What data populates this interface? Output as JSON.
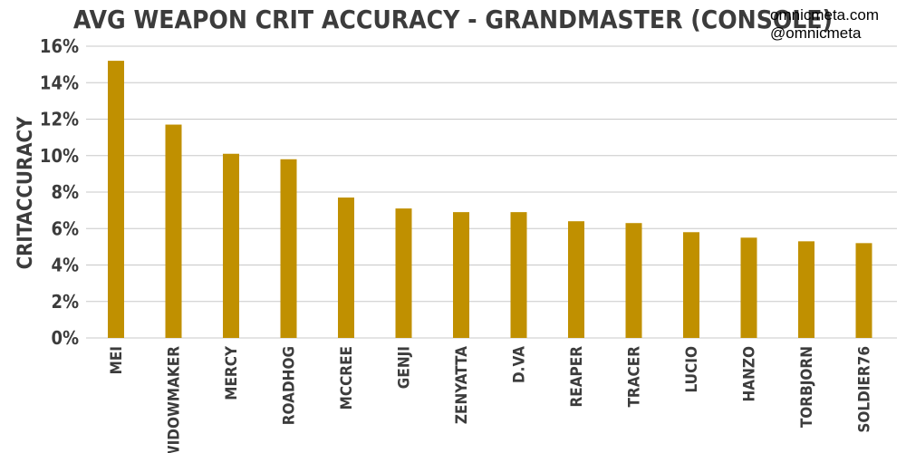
{
  "header": {
    "credit_site": "omnicmeta.com",
    "credit_handle": "@omnicmeta"
  },
  "colors": {
    "bar": "#c09000",
    "grid": "#c8c8c8",
    "text": "#3c3c3c"
  },
  "chart_data": {
    "type": "bar",
    "title": "AVG WEAPON CRIT ACCURACY - GRANDMASTER (CONSOLE)",
    "xlabel": "",
    "ylabel": "CRITACCURACY",
    "ylim": [
      0,
      16
    ],
    "yticks": [
      0,
      2,
      4,
      6,
      8,
      10,
      12,
      14,
      16
    ],
    "ytick_labels": [
      "0%",
      "2%",
      "4%",
      "6%",
      "8%",
      "10%",
      "12%",
      "14%",
      "16%"
    ],
    "grid": true,
    "legend": "none",
    "categories": [
      "MEI",
      "WIDOWMAKER",
      "MERCY",
      "ROADHOG",
      "MCCREE",
      "GENJI",
      "ZENYATTA",
      "D.VA",
      "REAPER",
      "TRACER",
      "LUCIO",
      "HANZO",
      "TORBJORN",
      "SOLDIER76"
    ],
    "values": [
      15.2,
      11.7,
      10.1,
      9.8,
      7.7,
      7.1,
      6.9,
      6.9,
      6.4,
      6.3,
      5.8,
      5.5,
      5.3,
      5.2
    ]
  }
}
